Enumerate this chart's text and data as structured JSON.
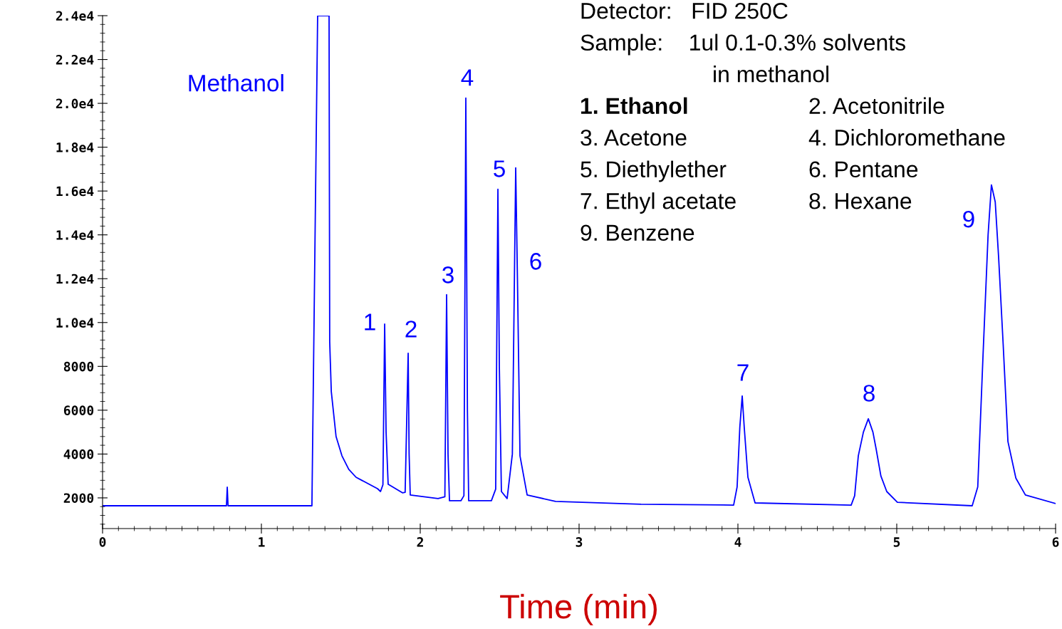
{
  "chart_data": {
    "type": "line",
    "xlabel": "Time (min)",
    "x": [
      0,
      0.78,
      0.785,
      0.79,
      1.318,
      1.354,
      1.426,
      1.43,
      1.44,
      1.47,
      1.507,
      1.55,
      1.596,
      1.731,
      1.75,
      1.765,
      1.776,
      1.785,
      1.798,
      1.888,
      1.905,
      1.924,
      1.93,
      1.937,
      2.112,
      2.155,
      2.166,
      2.175,
      2.184,
      2.256,
      2.275,
      2.287,
      2.297,
      2.305,
      2.448,
      2.475,
      2.489,
      2.498,
      2.511,
      2.547,
      2.58,
      2.601,
      2.612,
      2.628,
      2.673,
      2.852,
      3.39,
      3.973,
      3.995,
      4.012,
      4.027,
      4.04,
      4.063,
      4.108,
      4.713,
      4.735,
      4.758,
      4.79,
      4.821,
      4.85,
      4.87,
      4.9,
      4.937,
      5.004,
      5.475,
      5.51,
      5.543,
      5.575,
      5.596,
      5.62,
      5.641,
      5.67,
      5.7,
      5.75,
      5.81,
      6.0
    ],
    "series": [
      {
        "color": "#0000ff",
        "values": [
          1640,
          1640,
          2490,
          1640,
          1640,
          24000,
          24000,
          9120,
          6850,
          4800,
          3920,
          3300,
          2940,
          2420,
          2290,
          2600,
          9930,
          5000,
          2620,
          2230,
          2250,
          8600,
          4000,
          2130,
          1970,
          2050,
          11270,
          4000,
          1870,
          1870,
          2100,
          20240,
          6000,
          1870,
          1870,
          2400,
          16080,
          8000,
          2290,
          1970,
          4000,
          17060,
          12000,
          3920,
          2130,
          1840,
          1710,
          1670,
          2500,
          5220,
          6650,
          5200,
          2940,
          1770,
          1670,
          2100,
          3920,
          5000,
          5610,
          5000,
          4240,
          3000,
          2290,
          1800,
          1640,
          2500,
          8470,
          14000,
          16280,
          15500,
          13020,
          9000,
          4570,
          2900,
          2130,
          1740
        ]
      }
    ],
    "xlim": [
      0,
      6
    ],
    "ylim": [
      600,
      24000
    ],
    "xticks": [
      0,
      1,
      2,
      3,
      4,
      5,
      6
    ],
    "yticks": [
      2000,
      4000,
      6000,
      8000,
      {
        "value": 10000,
        "label": "1.0e4"
      },
      {
        "value": 12000,
        "label": "1.2e4"
      },
      {
        "value": 14000,
        "label": "1.4e4"
      },
      {
        "value": 16000,
        "label": "1.6e4"
      },
      {
        "value": 18000,
        "label": "1.8e4"
      },
      {
        "value": 20000,
        "label": "2.0e4"
      },
      {
        "value": 22000,
        "label": "2.2e4"
      },
      {
        "value": 24000,
        "label": "2.4e4"
      }
    ],
    "grid": false,
    "legend": false,
    "marker": "none",
    "line_style": "solid",
    "annotations": [
      "Detector:   FID 250C",
      "Sample:    1ul 0.1-0.3% solvents",
      "in methanol",
      "1. Ethanol",
      "2. Acetonitrile",
      "3. Acetone",
      "4. Dichloromethane",
      "5. Diethylether",
      "6. Pentane",
      "7. Ethyl acetate",
      "8. Hexane",
      "9. Benzene",
      "Methanol",
      {
        "text": "1",
        "x": 1.776,
        "y": 9930
      },
      {
        "text": "2",
        "x": 1.924,
        "y": 8600
      },
      {
        "text": "3",
        "x": 2.166,
        "y": 11270
      },
      {
        "text": "4",
        "x": 2.287,
        "y": 20240
      },
      {
        "text": "5",
        "x": 2.489,
        "y": 16080
      },
      {
        "text": "6",
        "x": 2.61,
        "y": 12700
      },
      {
        "text": "7",
        "x": 4.027,
        "y": 6650
      },
      {
        "text": "8",
        "x": 4.821,
        "y": 5610
      },
      {
        "text": "9",
        "x": 5.596,
        "y": 16280
      }
    ]
  }
}
